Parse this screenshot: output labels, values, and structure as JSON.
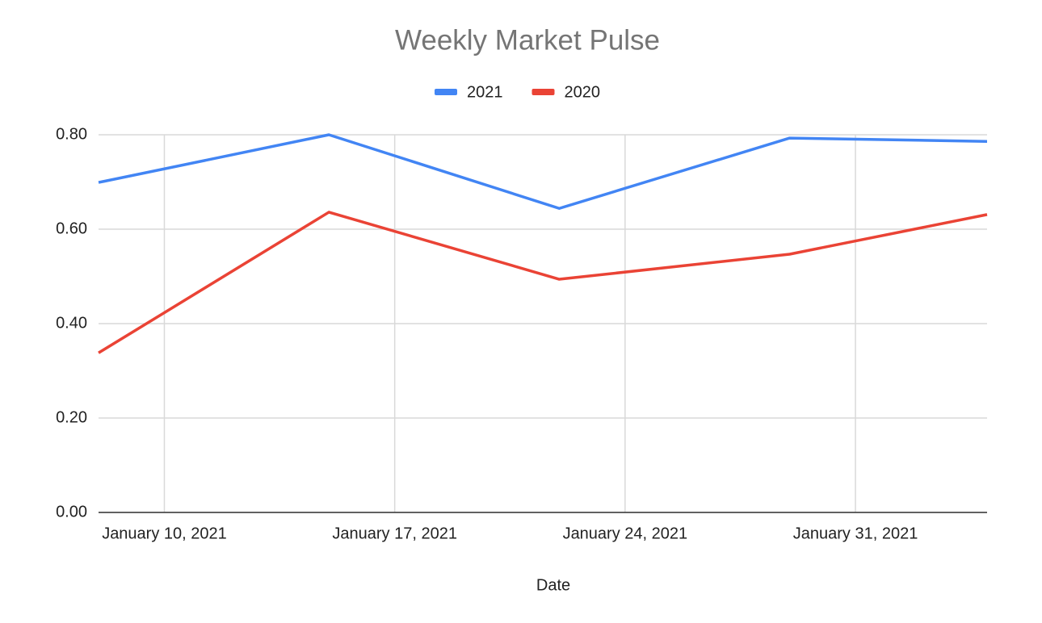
{
  "chart_data": {
    "type": "line",
    "title": "Weekly Market Pulse",
    "x_label": "Date",
    "x": [
      "2021-01-08",
      "2021-01-15",
      "2021-01-22",
      "2021-01-29",
      "2021-02-04"
    ],
    "series": [
      {
        "name": "2021",
        "color": "#4285f4",
        "values": [
          0.699,
          0.8,
          0.644,
          0.793,
          0.786
        ]
      },
      {
        "name": "2020",
        "color": "#ea4335",
        "values": [
          0.338,
          0.636,
          0.494,
          0.547,
          0.631
        ]
      }
    ],
    "xlim": [
      "2021-01-08",
      "2021-02-04"
    ],
    "xticks": [
      {
        "value": "2021-01-10",
        "label": "January 10, 2021"
      },
      {
        "value": "2021-01-17",
        "label": "January 17, 2021"
      },
      {
        "value": "2021-01-24",
        "label": "January 24, 2021"
      },
      {
        "value": "2021-01-31",
        "label": "January 31, 2021"
      }
    ],
    "ylim": [
      0,
      0.8
    ],
    "yticks": [
      {
        "value": 0,
        "label": "0.00"
      },
      {
        "value": 0.2,
        "label": "0.20"
      },
      {
        "value": 0.4,
        "label": "0.40"
      },
      {
        "value": 0.6,
        "label": "0.60"
      },
      {
        "value": 0.8,
        "label": "0.80"
      }
    ],
    "grid": true,
    "legend": "top"
  }
}
